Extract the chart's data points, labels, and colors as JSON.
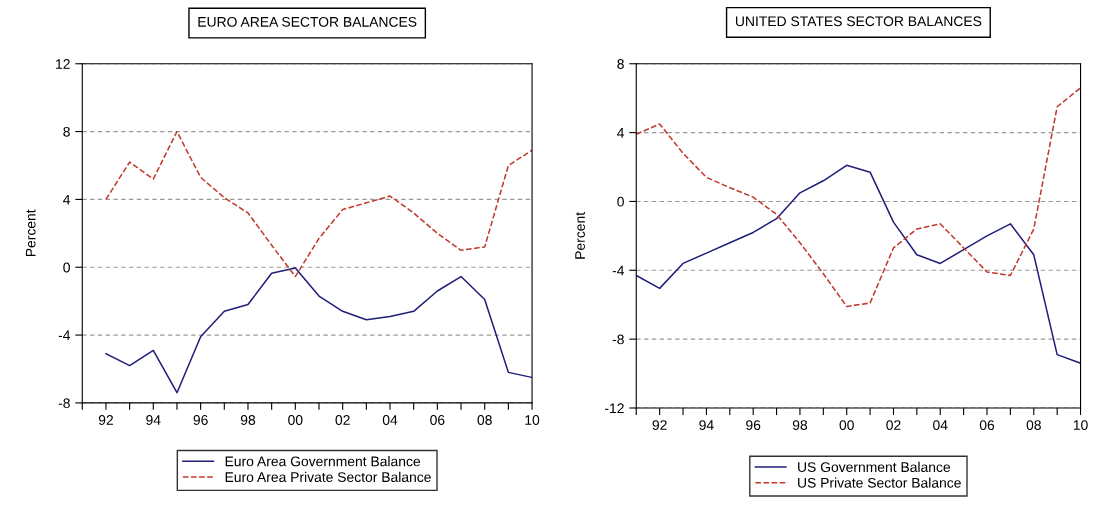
{
  "chart_data": [
    {
      "type": "line",
      "title": "EURO AREA SECTOR BALANCES",
      "ylabel": "Percent",
      "x": [
        1992,
        1993,
        1994,
        1995,
        1996,
        1997,
        1998,
        1999,
        2000,
        2001,
        2002,
        2003,
        2004,
        2005,
        2006,
        2007,
        2008,
        2009,
        2010
      ],
      "series": [
        {
          "name": "Euro Area Government Balance",
          "color": "#1f1f7a",
          "line_style": "solid",
          "values": [
            -5.1,
            -5.8,
            -4.9,
            -7.4,
            -4.1,
            -2.6,
            -2.2,
            -0.35,
            -0.05,
            -1.7,
            -2.6,
            -3.1,
            -2.9,
            -2.6,
            -1.4,
            -0.55,
            -1.9,
            -6.2,
            -6.5
          ]
        },
        {
          "name": "Euro Area Private Sector Balance",
          "color": "#c0392b",
          "line_style": "dashed",
          "values": [
            4.0,
            6.2,
            5.2,
            8.0,
            5.3,
            4.1,
            3.2,
            1.3,
            -0.55,
            1.7,
            3.4,
            3.8,
            4.2,
            3.2,
            2.0,
            1.0,
            1.2,
            6.0,
            6.9
          ]
        }
      ],
      "xlim": [
        1991,
        2010
      ],
      "xticks": [
        {
          "value": 1991,
          "label": null
        },
        {
          "value": 1992,
          "label": "92"
        },
        {
          "value": 1993,
          "label": null
        },
        {
          "value": 1994,
          "label": "94"
        },
        {
          "value": 1995,
          "label": null
        },
        {
          "value": 1996,
          "label": "96"
        },
        {
          "value": 1997,
          "label": null
        },
        {
          "value": 1998,
          "label": "98"
        },
        {
          "value": 1999,
          "label": null
        },
        {
          "value": 2000,
          "label": "00"
        },
        {
          "value": 2001,
          "label": null
        },
        {
          "value": 2002,
          "label": "02"
        },
        {
          "value": 2003,
          "label": null
        },
        {
          "value": 2004,
          "label": "04"
        },
        {
          "value": 2005,
          "label": null
        },
        {
          "value": 2006,
          "label": "06"
        },
        {
          "value": 2007,
          "label": null
        },
        {
          "value": 2008,
          "label": "08"
        },
        {
          "value": 2009,
          "label": null
        },
        {
          "value": 2010,
          "label": "10"
        }
      ],
      "ylim": [
        -8,
        12
      ],
      "yticks": [
        -8,
        -4,
        0,
        4,
        8,
        12
      ],
      "grid": "y",
      "legend": "bottom",
      "marker": "none"
    },
    {
      "type": "line",
      "title": "UNITED STATES SECTOR BALANCES",
      "ylabel": "Percent",
      "x": [
        1991,
        1992,
        1993,
        1994,
        1995,
        1996,
        1997,
        1998,
        1999,
        2000,
        2001,
        2002,
        2003,
        2004,
        2005,
        2006,
        2007,
        2008,
        2009,
        2010
      ],
      "series": [
        {
          "name": "US Government Balance",
          "color": "#1f1f7a",
          "line_style": "solid",
          "values": [
            -4.3,
            -5.05,
            -3.6,
            -3.0,
            -2.4,
            -1.8,
            -1.0,
            0.5,
            1.2,
            2.1,
            1.7,
            -1.2,
            -3.1,
            -3.6,
            -2.8,
            -2.0,
            -1.3,
            -3.1,
            -8.9,
            -9.4
          ]
        },
        {
          "name": "US Private Sector Balance",
          "color": "#c0392b",
          "line_style": "dashed",
          "values": [
            3.9,
            4.5,
            2.8,
            1.4,
            0.8,
            0.25,
            -0.75,
            -2.4,
            -4.2,
            -6.1,
            -5.9,
            -2.7,
            -1.6,
            -1.3,
            -2.7,
            -4.1,
            -4.3,
            -1.6,
            5.5,
            6.6
          ]
        }
      ],
      "xlim": [
        1991,
        2010
      ],
      "xticks": [
        {
          "value": 1991,
          "label": null
        },
        {
          "value": 1992,
          "label": "92"
        },
        {
          "value": 1993,
          "label": null
        },
        {
          "value": 1994,
          "label": "94"
        },
        {
          "value": 1995,
          "label": null
        },
        {
          "value": 1996,
          "label": "96"
        },
        {
          "value": 1997,
          "label": null
        },
        {
          "value": 1998,
          "label": "98"
        },
        {
          "value": 1999,
          "label": null
        },
        {
          "value": 2000,
          "label": "00"
        },
        {
          "value": 2001,
          "label": null
        },
        {
          "value": 2002,
          "label": "02"
        },
        {
          "value": 2003,
          "label": null
        },
        {
          "value": 2004,
          "label": "04"
        },
        {
          "value": 2005,
          "label": null
        },
        {
          "value": 2006,
          "label": "06"
        },
        {
          "value": 2007,
          "label": null
        },
        {
          "value": 2008,
          "label": "08"
        },
        {
          "value": 2009,
          "label": null
        },
        {
          "value": 2010,
          "label": "10"
        }
      ],
      "ylim": [
        -12,
        8
      ],
      "yticks": [
        -12,
        -8,
        -4,
        0,
        4,
        8
      ],
      "grid": "y",
      "legend": "bottom",
      "marker": "none"
    }
  ]
}
